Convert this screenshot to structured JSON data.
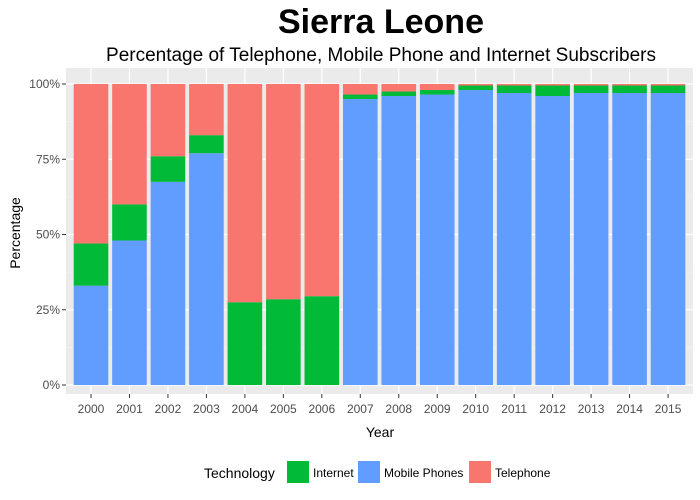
{
  "chart_data": {
    "type": "bar",
    "stacked": true,
    "title": "Sierra Leone",
    "subtitle": "Percentage of Telephone, Mobile Phone and Internet Subscribers",
    "xlabel": "Year",
    "ylabel": "Percentage",
    "ylim": [
      0,
      1
    ],
    "y_ticks": [
      "0%",
      "25%",
      "50%",
      "75%",
      "100%"
    ],
    "y_tick_values": [
      0,
      0.25,
      0.5,
      0.75,
      1.0
    ],
    "grid": true,
    "legend_position": "bottom",
    "legend_title": "Technology",
    "categories": [
      "2000",
      "2001",
      "2002",
      "2003",
      "2004",
      "2005",
      "2006",
      "2007",
      "2008",
      "2009",
      "2010",
      "2011",
      "2012",
      "2013",
      "2014",
      "2015"
    ],
    "series": [
      {
        "name": "Mobile Phones",
        "color": "#619CFF",
        "values": [
          0.33,
          0.48,
          0.675,
          0.77,
          0,
          0,
          0,
          0.95,
          0.96,
          0.965,
          0.98,
          0.97,
          0.96,
          0.97,
          0.97,
          0.97
        ]
      },
      {
        "name": "Internet",
        "color": "#00BA38",
        "values": [
          0.14,
          0.12,
          0.085,
          0.06,
          0.275,
          0.285,
          0.295,
          0.015,
          0.015,
          0.015,
          0.015,
          0.025,
          0.035,
          0.025,
          0.025,
          0.025
        ]
      },
      {
        "name": "Telephone",
        "color": "#F8766D",
        "values": [
          0.53,
          0.4,
          0.24,
          0.17,
          0.725,
          0.715,
          0.705,
          0.035,
          0.025,
          0.02,
          0.005,
          0.005,
          0.005,
          0.005,
          0.005,
          0.005
        ]
      }
    ],
    "legend_order": [
      "Internet",
      "Mobile Phones",
      "Telephone"
    ]
  }
}
